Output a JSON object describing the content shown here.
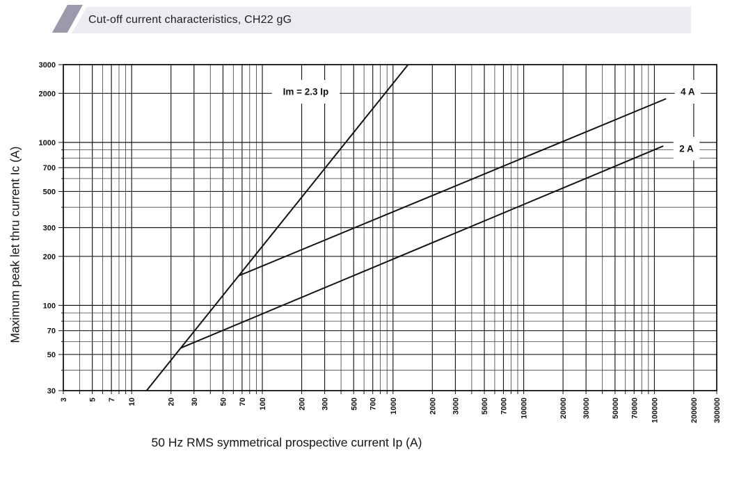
{
  "header": {
    "title": "Cut-off current characteristics, CH22 gG"
  },
  "colors": {
    "accent_parallelogram": "#9b9aad",
    "header_bar": "#ebebf2",
    "grid_minor": "#3c3c3c",
    "grid_major": "#161616",
    "curve": "#111111",
    "text": "#111111"
  },
  "chart_data": {
    "type": "line",
    "title": "Cut-off current characteristics, CH22 gG",
    "x_axis": {
      "label": "50 Hz RMS symmetrical prospective current Ip (A)",
      "scale": "log",
      "range": [
        3,
        300000
      ],
      "tick_labels": [
        "3",
        "5",
        "7",
        "10",
        "20",
        "30",
        "50",
        "70",
        "100",
        "200",
        "300",
        "500",
        "700",
        "1000",
        "2000",
        "3000",
        "5000",
        "7000",
        "10000",
        "20000",
        "30000",
        "50000",
        "70000",
        "100000",
        "200000",
        "300000"
      ],
      "tick_rotation": -90
    },
    "y_axis": {
      "label": "Maximum peak let thru current Ic (A)",
      "scale": "log",
      "range": [
        30,
        3000
      ],
      "tick_labels": [
        "30",
        "50",
        "70",
        "100",
        "200",
        "300",
        "500",
        "700",
        "1000",
        "2000",
        "3000"
      ]
    },
    "grid": {
      "style": "full log-log grid, lines at 1-9 of each decade",
      "legend": "inline labels"
    },
    "series": [
      {
        "name": "Im = 2.3 Ip",
        "kind": "reference-line",
        "points": [
          [
            13,
            30
          ],
          [
            1304,
            3000
          ]
        ],
        "label_at": [
          215,
          2045
        ]
      },
      {
        "name": "4 A",
        "kind": "fuse-curve",
        "points": [
          [
            66,
            152
          ],
          [
            123000,
            1854
          ]
        ],
        "label_at": [
          180000,
          2045
        ]
      },
      {
        "name": "2 A",
        "kind": "fuse-curve",
        "points": [
          [
            24,
            55
          ],
          [
            117000,
            950
          ]
        ],
        "label_at": [
          176000,
          915
        ]
      }
    ]
  }
}
